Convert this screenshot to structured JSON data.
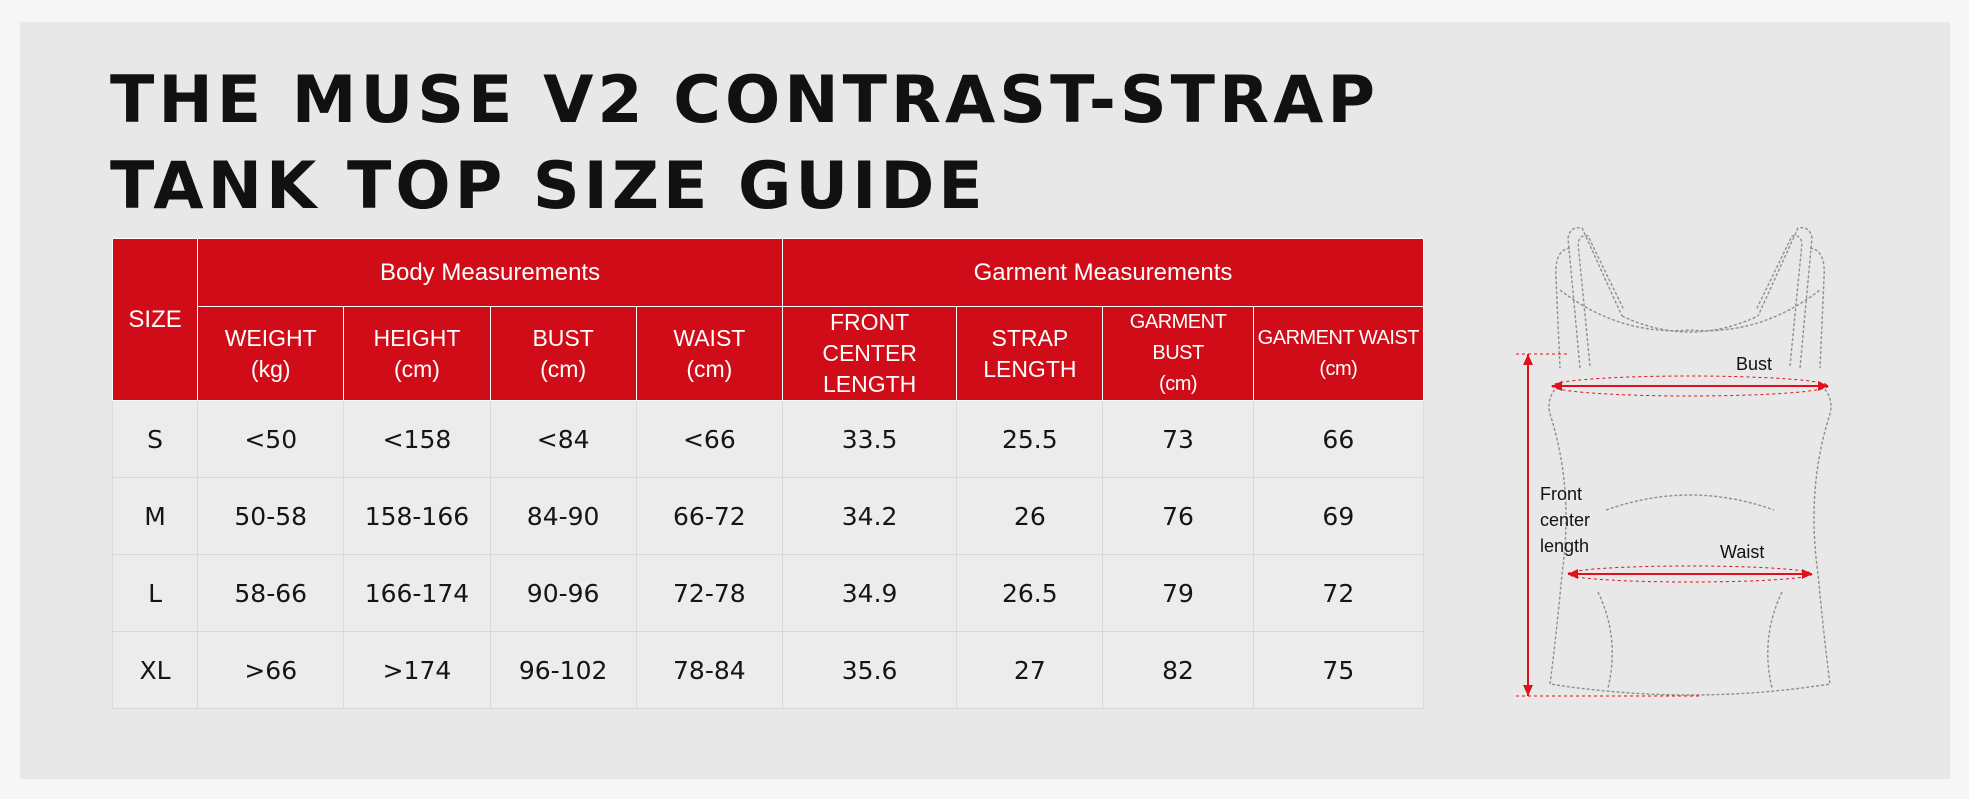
{
  "title": {
    "line1": "THE MUSE V2 CONTRAST-STRAP",
    "line2": "TANK TOP SIZE GUIDE"
  },
  "table": {
    "size_header": "SIZE",
    "groups": {
      "body": "Body Measurements",
      "garment": "Garment Measurements"
    },
    "columns": [
      {
        "line1": "WEIGHT",
        "line2": "(kg)"
      },
      {
        "line1": "HEIGHT",
        "line2": "(cm)"
      },
      {
        "line1": "BUST",
        "line2": "(cm)"
      },
      {
        "line1": "WAIST",
        "line2": "(cm)"
      },
      {
        "line1": "FRONT",
        "line2": "CENTER LENGTH"
      },
      {
        "line1": "STRAP",
        "line2": "LENGTH"
      },
      {
        "line1": "GARMENT BUST",
        "line2": "(cm)"
      },
      {
        "line1": "GARMENT WAIST",
        "line2": "(cm)"
      }
    ],
    "rows": [
      {
        "size": "S",
        "cells": [
          "<50",
          "<158",
          "<84",
          "<66",
          "33.5",
          "25.5",
          "73",
          "66"
        ]
      },
      {
        "size": "M",
        "cells": [
          "50-58",
          "158-166",
          "84-90",
          "66-72",
          "34.2",
          "26",
          "76",
          "69"
        ]
      },
      {
        "size": "L",
        "cells": [
          "58-66",
          "166-174",
          "90-96",
          "72-78",
          "34.9",
          "26.5",
          "79",
          "72"
        ]
      },
      {
        "size": "XL",
        "cells": [
          ">66",
          ">174",
          "96-102",
          "78-84",
          "35.6",
          "27",
          "82",
          "75"
        ]
      }
    ]
  },
  "diagram": {
    "bust_label": "Bust",
    "waist_label": "Waist",
    "length_label_1": "Front",
    "length_label_2": "center",
    "length_label_3": "length"
  },
  "colors": {
    "header_red": "#cf0c17",
    "measure_red": "#e0101c"
  }
}
